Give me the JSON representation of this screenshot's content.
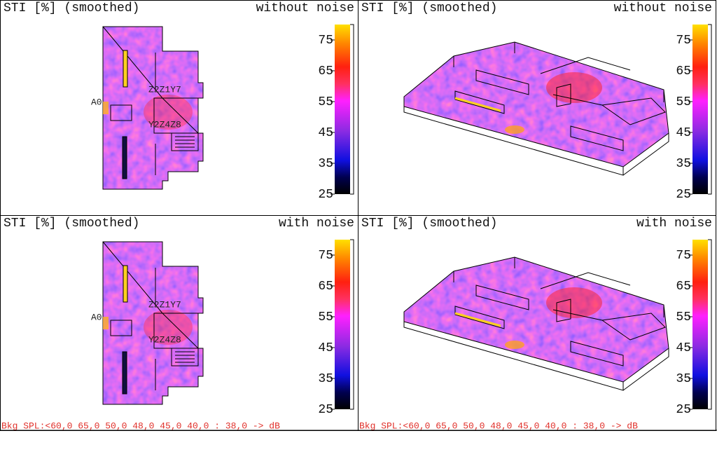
{
  "panels": [
    {
      "title": "STI [%] (smoothed)",
      "condition": "without noise",
      "colorbar": {
        "range": [
          25,
          80
        ],
        "ticks": [
          25,
          35,
          45,
          55,
          65,
          75
        ]
      },
      "labels": [
        "A0",
        "Z2Z1Y7",
        "Y2Z4Z8"
      ]
    },
    {
      "title": "STI [%] (smoothed)",
      "condition": "without noise",
      "colorbar": {
        "range": [
          25,
          80
        ],
        "ticks": [
          25,
          35,
          45,
          55,
          65,
          75
        ]
      }
    },
    {
      "title": "STI [%] (smoothed)",
      "condition": "with noise",
      "colorbar": {
        "range": [
          25,
          80
        ],
        "ticks": [
          25,
          35,
          45,
          55,
          65,
          75
        ]
      },
      "labels": [
        "A0",
        "Z2Z1Y7",
        "Y2Z4Z8"
      ],
      "footer": "Bkg SPL:<60,0 65,0 50,0 48,0 45,0 40,0 : 38,0  -> dB"
    },
    {
      "title": "STI [%] (smoothed)",
      "condition": "with noise",
      "colorbar": {
        "range": [
          25,
          80
        ],
        "ticks": [
          25,
          35,
          45,
          55,
          65,
          75
        ]
      },
      "footer": "Bkg SPL:<60,0 65,0 50,0 48,0 45,0 40,0 : 38,0  -> dB"
    }
  ]
}
